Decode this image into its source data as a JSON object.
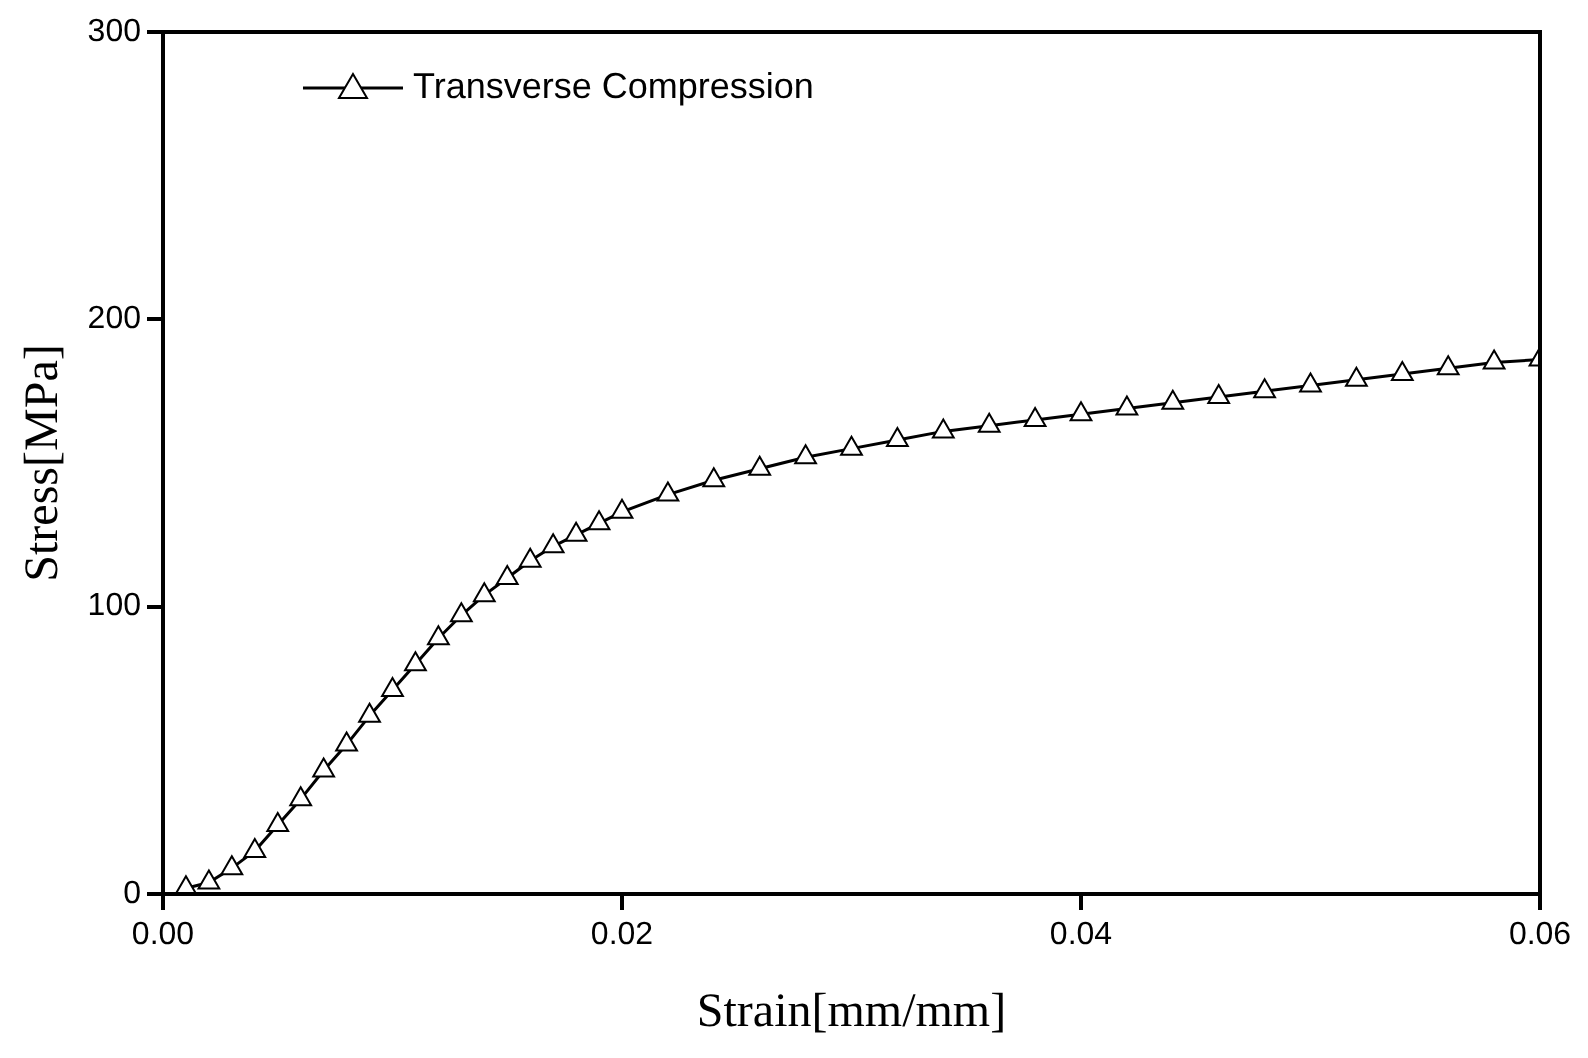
{
  "chart_data": {
    "type": "line",
    "xlabel": "Strain[mm/mm]",
    "ylabel": "Stress[MPa]",
    "xlim": [
      0,
      0.06
    ],
    "xticks": [
      {
        "value": 0,
        "label": "0.00"
      },
      {
        "value": 0.02,
        "label": "0.02"
      },
      {
        "value": 0.04,
        "label": "0.04"
      },
      {
        "value": 0.06,
        "label": "0.06"
      }
    ],
    "ylim": [
      0,
      300
    ],
    "yticks": [
      0,
      100,
      200,
      300
    ],
    "grid": false,
    "legend": "top left",
    "marker": "triangle",
    "line_style": "solid",
    "series": [
      {
        "name": "Transverse Compression",
        "color": "#000000",
        "x": [
          0.001,
          0.002,
          0.003,
          0.004,
          0.005,
          0.006,
          0.007,
          0.008,
          0.009,
          0.01,
          0.011,
          0.012,
          0.013,
          0.014,
          0.015,
          0.016,
          0.017,
          0.018,
          0.019,
          0.02,
          0.022,
          0.024,
          0.026,
          0.028,
          0.03,
          0.032,
          0.034,
          0.036,
          0.038,
          0.04,
          0.042,
          0.044,
          0.046,
          0.048,
          0.05,
          0.052,
          0.054,
          0.056,
          0.058,
          0.06
        ],
        "values": [
          2,
          4,
          9,
          15,
          24,
          33,
          43,
          52,
          62,
          71,
          80,
          89,
          97,
          104,
          110,
          116,
          121,
          125,
          129,
          133,
          139,
          144,
          148,
          152,
          155,
          158,
          161,
          163,
          165,
          167,
          169,
          171,
          173,
          175,
          177,
          179,
          181,
          183,
          185,
          186
        ]
      }
    ]
  }
}
